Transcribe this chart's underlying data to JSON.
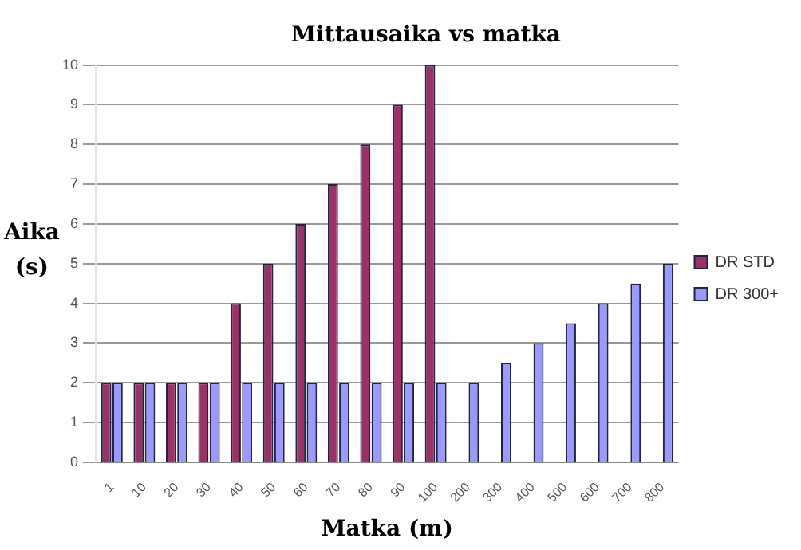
{
  "chart_data": {
    "type": "bar",
    "title": "Mittausaika vs matka",
    "xlabel": "Matka (m)",
    "ylabel": "Aika (s)",
    "categories": [
      "1",
      "10",
      "20",
      "30",
      "40",
      "50",
      "60",
      "70",
      "80",
      "90",
      "100",
      "200",
      "300",
      "400",
      "500",
      "600",
      "700",
      "800"
    ],
    "series": [
      {
        "name": "DR STD",
        "color": "#993366",
        "values": [
          2,
          2,
          2,
          2,
          4,
          5,
          6,
          7,
          8,
          9,
          10,
          null,
          null,
          null,
          null,
          null,
          null,
          null
        ]
      },
      {
        "name": "DR 300+",
        "color": "#9999ff",
        "values": [
          2,
          2,
          2,
          2,
          2,
          2,
          2,
          2,
          2,
          2,
          2,
          2,
          2.5,
          3,
          3.5,
          4,
          4.5,
          5
        ]
      }
    ],
    "ylim": [
      0,
      10
    ],
    "yticks": [
      0,
      1,
      2,
      3,
      4,
      5,
      6,
      7,
      8,
      9,
      10
    ],
    "grid": "y",
    "legend": "right"
  }
}
